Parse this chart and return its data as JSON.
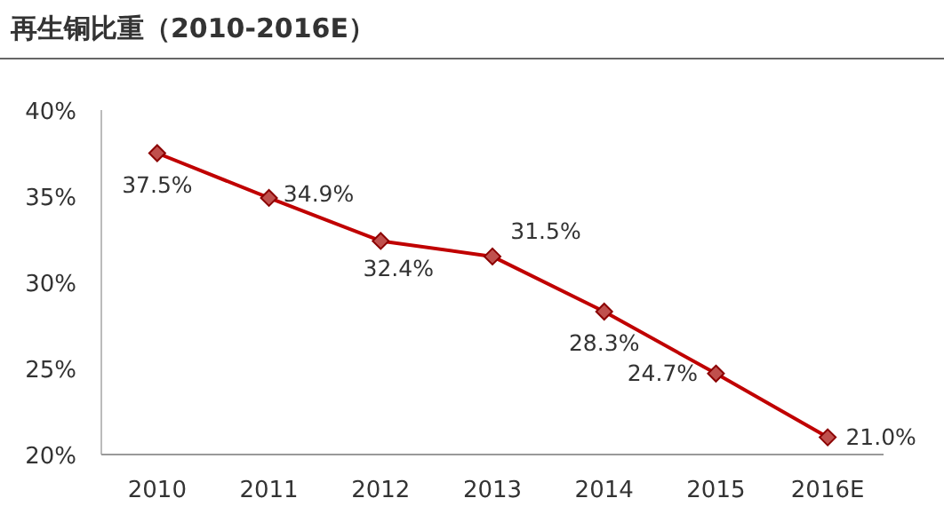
{
  "chart_data": {
    "type": "line",
    "title": "再生铜比重（2010-2016E）",
    "categories": [
      "2010",
      "2011",
      "2012",
      "2013",
      "2014",
      "2015",
      "2016E"
    ],
    "series": [
      {
        "color": "#c00000",
        "values": [
          37.5,
          34.9,
          32.4,
          31.5,
          28.3,
          24.7,
          21.0
        ],
        "value_labels": [
          "37.5%",
          "34.9%",
          "32.4%",
          "31.5%",
          "28.3%",
          "24.7%",
          "21.0%"
        ]
      }
    ],
    "ylim": [
      20,
      40
    ],
    "yticks": [
      {
        "value": 20,
        "label": "20%"
      },
      {
        "value": 25,
        "label": "25%"
      },
      {
        "value": 30,
        "label": "30%"
      },
      {
        "value": 35,
        "label": "35%"
      },
      {
        "value": 40,
        "label": "40%"
      }
    ],
    "marker": "diamond",
    "grid": false
  }
}
